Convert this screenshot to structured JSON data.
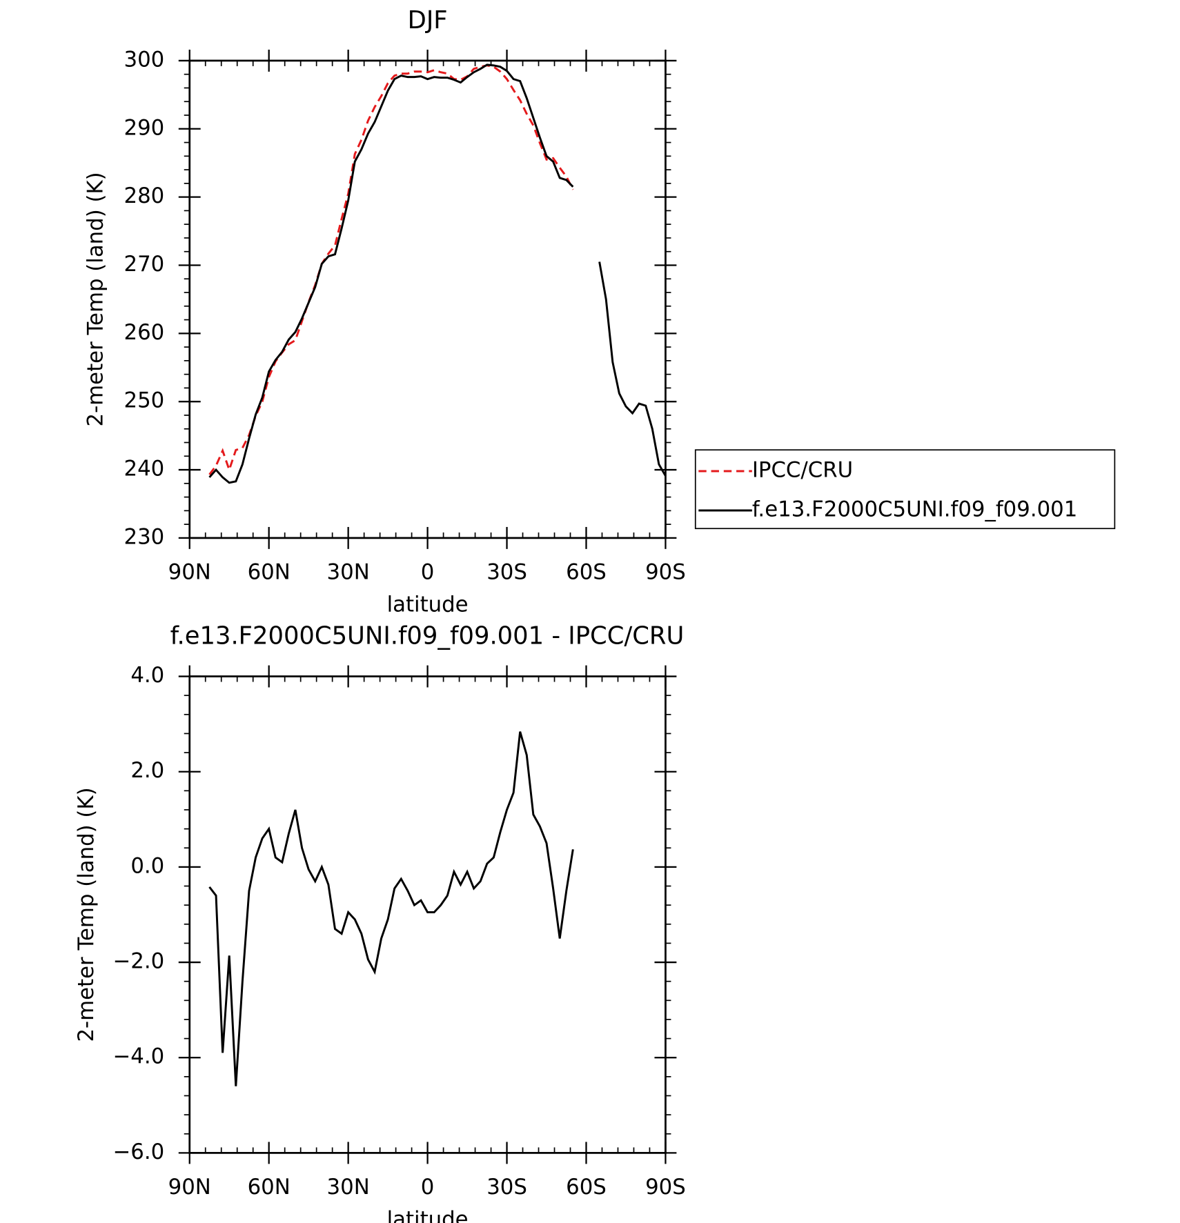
{
  "chart_data": [
    {
      "type": "line",
      "title": "DJF",
      "xlabel": "latitude",
      "ylabel": "2-meter Temp (land) (K)",
      "x": [
        82.5,
        80,
        77.5,
        75,
        72.5,
        70,
        67.5,
        65,
        62.5,
        60,
        57.5,
        55,
        52.5,
        50,
        47.5,
        45,
        42.5,
        40,
        37.5,
        35,
        32.5,
        30,
        27.5,
        25,
        22.5,
        20,
        17.5,
        15,
        12.5,
        10,
        7.5,
        5,
        2.5,
        0,
        -2.5,
        -5,
        -7.5,
        -10,
        -12.5,
        -15,
        -17.5,
        -20,
        -22.5,
        -25,
        -27.5,
        -30,
        -32.5,
        -35,
        -37.5,
        -40,
        -42.5,
        -45,
        -47.5,
        -50,
        -52.5,
        -55,
        -60,
        -65,
        -67.5,
        -70,
        -72.5,
        -75,
        -77.5,
        -80,
        -82.5,
        -85,
        -87.5,
        -90
      ],
      "series": [
        {
          "name": "IPCC/CRU",
          "color": "#e41a1c",
          "line_style": "dashed",
          "values": [
            239.3,
            240.6,
            242.8,
            240.0,
            242.9,
            243.2,
            245.1,
            247.9,
            250.0,
            253.6,
            255.9,
            257.2,
            258.4,
            259.0,
            261.8,
            264.6,
            267.1,
            270.2,
            271.7,
            272.9,
            276.8,
            280.5,
            286.3,
            288.4,
            291.2,
            293.2,
            294.8,
            296.7,
            297.8,
            298.1,
            298.1,
            298.4,
            298.4,
            298.3,
            298.6,
            298.3,
            298.1,
            297.3,
            297.2,
            297.7,
            298.8,
            299.1,
            299.3,
            299.1,
            298.4,
            297.3,
            295.7,
            294.2,
            292.2,
            290.5,
            287.9,
            285.5,
            285.7,
            284.3,
            283.0,
            281.1,
            null,
            null,
            null,
            null,
            null,
            null,
            null,
            null,
            null,
            null,
            null,
            null
          ]
        },
        {
          "name": "f.e13.F2000C5UNI.f09_f09.001",
          "color": "#000000",
          "line_style": "solid",
          "values": [
            238.9,
            240.0,
            238.9,
            238.1,
            238.3,
            240.8,
            244.6,
            248.1,
            250.6,
            254.4,
            256.1,
            257.3,
            259.1,
            260.2,
            262.2,
            264.5,
            266.8,
            270.2,
            271.3,
            271.6,
            275.4,
            279.5,
            285.2,
            287.0,
            289.3,
            291.0,
            293.3,
            295.6,
            297.3,
            297.8,
            297.6,
            297.6,
            297.7,
            297.3,
            297.6,
            297.5,
            297.5,
            297.2,
            296.8,
            297.6,
            298.3,
            298.8,
            299.4,
            299.3,
            299.1,
            298.5,
            297.3,
            297.0,
            294.5,
            291.6,
            288.7,
            286.0,
            285.2,
            282.8,
            282.5,
            281.5,
            null,
            270.5,
            265.0,
            255.8,
            251.2,
            249.3,
            248.3,
            249.7,
            249.4,
            246.0,
            240.8,
            239.1
          ]
        }
      ],
      "xlim": [
        90,
        -90
      ],
      "xticks": [
        {
          "value": 90,
          "label": "90N"
        },
        {
          "value": 60,
          "label": "60N"
        },
        {
          "value": 30,
          "label": "30N"
        },
        0,
        {
          "value": -30,
          "label": "30S"
        },
        {
          "value": -60,
          "label": "60S"
        },
        {
          "value": -90,
          "label": "90S"
        }
      ],
      "ylim": [
        230,
        300
      ],
      "yticks": [
        230,
        240,
        250,
        260,
        270,
        280,
        290,
        300
      ],
      "legend": "right"
    },
    {
      "type": "line",
      "title": "f.e13.F2000C5UNI.f09_f09.001 - IPCC/CRU",
      "xlabel": "latitude",
      "ylabel": "2-meter Temp (land) (K)",
      "x": [
        82.5,
        80,
        77.5,
        75,
        72.5,
        70,
        67.5,
        65,
        62.5,
        60,
        57.5,
        55,
        52.5,
        50,
        47.5,
        45,
        42.5,
        40,
        37.5,
        35,
        32.5,
        30,
        27.5,
        25,
        22.5,
        20,
        17.5,
        15,
        12.5,
        10,
        7.5,
        5,
        2.5,
        0,
        -2.5,
        -5,
        -7.5,
        -10,
        -12.5,
        -15,
        -17.5,
        -20,
        -22.5,
        -25,
        -27.5,
        -30,
        -32.5,
        -35,
        -37.5,
        -40,
        -42.5,
        -45,
        -47.5,
        -50,
        -52.5,
        -55
      ],
      "series": [
        {
          "color": "#000000",
          "line_style": "solid",
          "values": [
            -0.42,
            -0.6,
            -3.9,
            -1.86,
            -4.6,
            -2.4,
            -0.5,
            0.2,
            0.6,
            0.8,
            0.2,
            0.1,
            0.7,
            1.2,
            0.4,
            -0.05,
            -0.3,
            0.0,
            -0.37,
            -1.3,
            -1.4,
            -0.95,
            -1.1,
            -1.4,
            -1.94,
            -2.2,
            -1.5,
            -1.1,
            -0.45,
            -0.25,
            -0.5,
            -0.8,
            -0.7,
            -0.95,
            -0.95,
            -0.8,
            -0.6,
            -0.1,
            -0.37,
            -0.1,
            -0.45,
            -0.3,
            0.07,
            0.2,
            0.73,
            1.2,
            1.56,
            2.84,
            2.35,
            1.1,
            0.85,
            0.5,
            -0.45,
            -1.5,
            -0.5,
            0.37
          ]
        }
      ],
      "xlim": [
        90,
        -90
      ],
      "xticks": [
        {
          "value": 90,
          "label": "90N"
        },
        {
          "value": 60,
          "label": "60N"
        },
        {
          "value": 30,
          "label": "30N"
        },
        0,
        {
          "value": -30,
          "label": "30S"
        },
        {
          "value": -60,
          "label": "60S"
        },
        {
          "value": -90,
          "label": "90S"
        }
      ],
      "ylim": [
        -6,
        4
      ],
      "yticks": [
        {
          "value": -6,
          "label": "−6.0"
        },
        {
          "value": -4,
          "label": "−4.0"
        },
        {
          "value": -2,
          "label": "−2.0"
        },
        {
          "value": 0,
          "label": "0.0"
        },
        {
          "value": 2,
          "label": "2.0"
        },
        {
          "value": 4,
          "label": "4.0"
        }
      ]
    }
  ]
}
